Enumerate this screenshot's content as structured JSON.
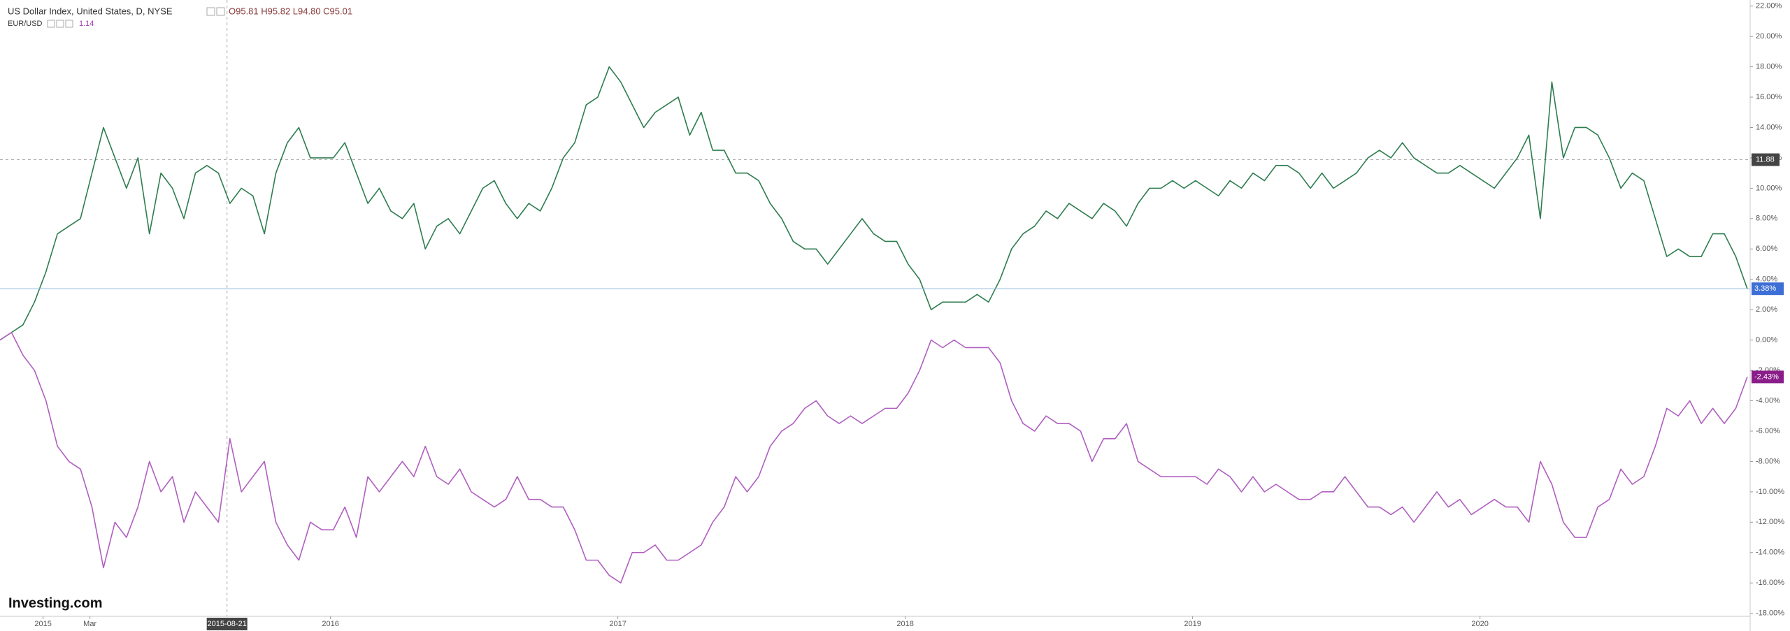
{
  "chart_data": {
    "type": "line",
    "watermark": "Investing.com",
    "x": [
      2014.85,
      2014.89,
      2014.93,
      2014.97,
      2015.01,
      2015.05,
      2015.09,
      2015.13,
      2015.17,
      2015.21,
      2015.25,
      2015.29,
      2015.33,
      2015.37,
      2015.41,
      2015.45,
      2015.49,
      2015.53,
      2015.57,
      2015.61,
      2015.65,
      2015.69,
      2015.73,
      2015.77,
      2015.81,
      2015.85,
      2015.89,
      2015.93,
      2015.97,
      2016.01,
      2016.05,
      2016.09,
      2016.13,
      2016.17,
      2016.21,
      2016.25,
      2016.29,
      2016.33,
      2016.37,
      2016.41,
      2016.45,
      2016.49,
      2016.53,
      2016.57,
      2016.61,
      2016.65,
      2016.69,
      2016.73,
      2016.77,
      2016.81,
      2016.85,
      2016.89,
      2016.93,
      2016.97,
      2017.01,
      2017.05,
      2017.09,
      2017.13,
      2017.17,
      2017.21,
      2017.25,
      2017.29,
      2017.33,
      2017.37,
      2017.41,
      2017.45,
      2017.49,
      2017.53,
      2017.57,
      2017.61,
      2017.65,
      2017.69,
      2017.73,
      2017.77,
      2017.81,
      2017.85,
      2017.89,
      2017.93,
      2017.97,
      2018.01,
      2018.05,
      2018.09,
      2018.13,
      2018.17,
      2018.21,
      2018.25,
      2018.29,
      2018.33,
      2018.37,
      2018.41,
      2018.45,
      2018.49,
      2018.53,
      2018.57,
      2018.61,
      2018.65,
      2018.69,
      2018.73,
      2018.77,
      2018.81,
      2018.85,
      2018.89,
      2018.93,
      2018.97,
      2019.01,
      2019.05,
      2019.09,
      2019.13,
      2019.17,
      2019.21,
      2019.25,
      2019.29,
      2019.33,
      2019.37,
      2019.41,
      2019.45,
      2019.49,
      2019.53,
      2019.57,
      2019.61,
      2019.65,
      2019.69,
      2019.73,
      2019.77,
      2019.81,
      2019.85,
      2019.89,
      2019.93,
      2019.97,
      2020.01,
      2020.05,
      2020.09,
      2020.13,
      2020.17,
      2020.21,
      2020.25,
      2020.29,
      2020.33,
      2020.37,
      2020.41,
      2020.45,
      2020.49,
      2020.53,
      2020.57,
      2020.61,
      2020.65,
      2020.69,
      2020.73,
      2020.77,
      2020.81,
      2020.85,
      2020.89,
      2020.93
    ],
    "series": [
      {
        "name": "US Dollar Index, United States, D, NYSE",
        "legend_value": "O95.81 H95.82 L94.80 C95.01",
        "color": "#2e7d4f",
        "label_color": "#3d6fd6",
        "last_value_label": "3.38%",
        "values": [
          0,
          0.5,
          1,
          2.5,
          4.5,
          7,
          7.5,
          8,
          11,
          14,
          12,
          10,
          12,
          7,
          11,
          10,
          8,
          11,
          11.5,
          11,
          9,
          10,
          9.5,
          7,
          11,
          13,
          14,
          12,
          12,
          12,
          13,
          11,
          9,
          10,
          8.5,
          8,
          9,
          6,
          7.5,
          8,
          7,
          8.5,
          10,
          10.5,
          9,
          8,
          9,
          8.5,
          10,
          12,
          13,
          15.5,
          16,
          18,
          17,
          15.5,
          14,
          15,
          15.5,
          16,
          13.5,
          15,
          12.5,
          12.5,
          11,
          11,
          10.5,
          9,
          8,
          6.5,
          6,
          6,
          5,
          6,
          7,
          8,
          7,
          6.5,
          6.5,
          5,
          4,
          2,
          2.5,
          2.5,
          2.5,
          3,
          2.5,
          4,
          6,
          7,
          7.5,
          8.5,
          8,
          9,
          8.5,
          8,
          9,
          8.5,
          7.5,
          9,
          10,
          10,
          10.5,
          10,
          10.5,
          10,
          9.5,
          10.5,
          10,
          11,
          10.5,
          11.5,
          11.5,
          11,
          10,
          11,
          10,
          10.5,
          11,
          12,
          12.5,
          12,
          13,
          12,
          11.5,
          11,
          11,
          11.5,
          11,
          10.5,
          10,
          11,
          12,
          13.5,
          8,
          17,
          12,
          14,
          14,
          13.5,
          12,
          10,
          11,
          10.5,
          8,
          5.5,
          6,
          5.5,
          5.5,
          7,
          7,
          5.5,
          3.38
        ]
      },
      {
        "name": "EUR/USD",
        "legend_value": "1.14",
        "color": "#b05fc0",
        "label_color": "#8a1d8a",
        "last_value_label": "-2.43%",
        "values": [
          0,
          0.5,
          -1,
          -2,
          -4,
          -7,
          -8,
          -8.5,
          -11,
          -15,
          -12,
          -13,
          -11,
          -8,
          -10,
          -9,
          -12,
          -10,
          -11,
          -12,
          -6.5,
          -10,
          -9,
          -8,
          -12,
          -13.5,
          -14.5,
          -12,
          -12.5,
          -12.5,
          -11,
          -13,
          -9,
          -10,
          -9,
          -8,
          -9,
          -7,
          -9,
          -9.5,
          -8.5,
          -10,
          -10.5,
          -11,
          -10.5,
          -9,
          -10.5,
          -10.5,
          -11,
          -11,
          -12.5,
          -14.5,
          -14.5,
          -15.5,
          -16,
          -14,
          -14,
          -13.5,
          -14.5,
          -14.5,
          -14,
          -13.5,
          -12,
          -11,
          -9,
          -10,
          -9,
          -7,
          -6,
          -5.5,
          -4.5,
          -4,
          -5,
          -5.5,
          -5,
          -5.5,
          -5,
          -4.5,
          -4.5,
          -3.5,
          -2,
          0,
          -0.5,
          0,
          -0.5,
          -0.5,
          -0.5,
          -1.5,
          -4,
          -5.5,
          -6,
          -5,
          -5.5,
          -5.5,
          -6,
          -8,
          -6.5,
          -6.5,
          -5.5,
          -8,
          -8.5,
          -9,
          -9,
          -9,
          -9,
          -9.5,
          -8.5,
          -9,
          -10,
          -9,
          -10,
          -9.5,
          -10,
          -10.5,
          -10.5,
          -10,
          -10,
          -9,
          -10,
          -11,
          -11,
          -11.5,
          -11,
          -12,
          -11,
          -10,
          -11,
          -10.5,
          -11.5,
          -11,
          -10.5,
          -11,
          -11,
          -12,
          -8,
          -9.5,
          -12,
          -13,
          -13,
          -11,
          -10.5,
          -8.5,
          -9.5,
          -9,
          -7,
          -4.5,
          -5,
          -4,
          -5.5,
          -4.5,
          -5.5,
          -4.5,
          -2.43
        ]
      }
    ],
    "xlim": [
      2014.85,
      2020.94
    ],
    "ylim": [
      -18.2,
      22.4
    ],
    "xticks": [
      2015,
      {
        "value": 2015.163,
        "label": "Mar"
      },
      2016,
      2017,
      2018,
      2019,
      2020
    ],
    "yticks": [
      {
        "value": 22,
        "label": "22.00%"
      },
      {
        "value": 20,
        "label": "20.00%"
      },
      {
        "value": 18,
        "label": "18.00%"
      },
      {
        "value": 16,
        "label": "16.00%"
      },
      {
        "value": 14,
        "label": "14.00%"
      },
      {
        "value": 12,
        "label": "12.00%"
      },
      {
        "value": 10,
        "label": "10.00%"
      },
      {
        "value": 8,
        "label": "8.00%"
      },
      {
        "value": 6,
        "label": "6.00%"
      },
      {
        "value": 4,
        "label": "4.00%"
      },
      {
        "value": 2,
        "label": "2.00%"
      },
      {
        "value": 0,
        "label": "0.00%"
      },
      {
        "value": -2,
        "label": "-2.00%"
      },
      {
        "value": -4,
        "label": "-4.00%"
      },
      {
        "value": -6,
        "label": "-6.00%"
      },
      {
        "value": -8,
        "label": "-8.00%"
      },
      {
        "value": -10,
        "label": "-10.00%"
      },
      {
        "value": -12,
        "label": "-12.00%"
      },
      {
        "value": -14,
        "label": "-14.00%"
      },
      {
        "value": -16,
        "label": "-16.00%"
      },
      {
        "value": -18,
        "label": "-18.00%"
      }
    ],
    "crosshair": {
      "x": {
        "value": 2015.64,
        "label": "2015-08-21"
      },
      "y": 11.88
    },
    "grid": false
  }
}
